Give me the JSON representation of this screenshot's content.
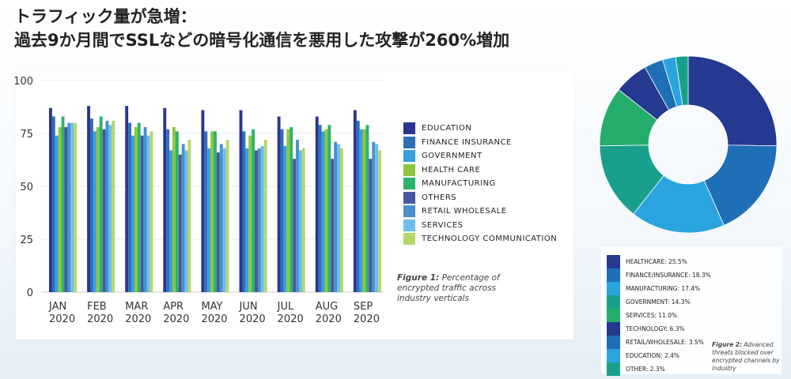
{
  "title": {
    "line1": "トラフィック量が急増：",
    "line2": "過去9か月間でSSLなどの暗号化通信を悪用した攻撃が260%増加"
  },
  "chart_data": [
    {
      "type": "bar",
      "title": "",
      "xlabel": "",
      "ylabel": "",
      "ylim": [
        0,
        100
      ],
      "yticks": [
        "0",
        "25",
        "50",
        "75",
        "100"
      ],
      "grid": true,
      "legend_position": "right",
      "categories": [
        "JAN 2020",
        "FEB 2020",
        "MAR 2020",
        "APR 2020",
        "MAY 2020",
        "JUN 2020",
        "JUL 2020",
        "AUG 2020",
        "SEP 2020"
      ],
      "category_lines": [
        [
          "JAN",
          "2020"
        ],
        [
          "FEB",
          "2020"
        ],
        [
          "MAR",
          "2020"
        ],
        [
          "APR",
          "2020"
        ],
        [
          "MAY",
          "2020"
        ],
        [
          "JUN",
          "2020"
        ],
        [
          "JUL",
          "2020"
        ],
        [
          "AUG",
          "2020"
        ],
        [
          "SEP",
          "2020"
        ]
      ],
      "series": [
        {
          "name": "EDUCATION",
          "color": "#2a3590",
          "values": [
            87,
            88,
            88,
            87,
            86,
            86,
            83,
            83,
            86
          ]
        },
        {
          "name": "FINANCE INSURANCE",
          "color": "#2f6fba",
          "values": [
            83,
            82,
            80,
            77,
            76,
            76,
            77,
            79,
            81
          ]
        },
        {
          "name": "GOVERNMENT",
          "color": "#36a0e0",
          "values": [
            74,
            76,
            74,
            67,
            68,
            68,
            69,
            76,
            77
          ]
        },
        {
          "name": "HEALTH CARE",
          "color": "#8cc63f",
          "values": [
            78,
            78,
            78,
            78,
            76,
            74,
            77,
            77,
            77
          ]
        },
        {
          "name": "MANUFACTURING",
          "color": "#2bb36b",
          "values": [
            83,
            83,
            80,
            76,
            76,
            77,
            78,
            79,
            79
          ]
        },
        {
          "name": "OTHERS",
          "color": "#4a56a0",
          "values": [
            78,
            77,
            74,
            65,
            66,
            67,
            63,
            63,
            63
          ]
        },
        {
          "name": "RETAIL WHOLESALE",
          "color": "#4a8fd0",
          "values": [
            80,
            81,
            78,
            70,
            70,
            68,
            72,
            71,
            71
          ]
        },
        {
          "name": "SERVICES",
          "color": "#6cbfea",
          "values": [
            80,
            79,
            74,
            67,
            68,
            69,
            67,
            70,
            70
          ]
        },
        {
          "name": "TECHNOLOGY COMMUNICATION",
          "color": "#b5d86a",
          "values": [
            80,
            81,
            76,
            72,
            72,
            72,
            68,
            68,
            67
          ]
        }
      ],
      "caption_label": "Figure 1:",
      "caption_text": "Percentage of encrypted traffic across industry verticals"
    },
    {
      "type": "pie",
      "donut": true,
      "slices": [
        {
          "label": "HEALTHCARE: 25.5%",
          "value": 25.5,
          "color": "#24398f"
        },
        {
          "label": "FINANCE/INSURANCE: 18.3%",
          "value": 18.3,
          "color": "#1f6fb7"
        },
        {
          "label": "MANUFACTURING: 17.4%",
          "value": 17.4,
          "color": "#2aa4de"
        },
        {
          "label": "GOVERNMENT: 14.3%",
          "value": 14.3,
          "color": "#18a08c"
        },
        {
          "label": "SERVICES: 11.0%",
          "value": 11.0,
          "color": "#25ad6c"
        },
        {
          "label": "TECHNOLOGY: 6.3%",
          "value": 6.3,
          "color": "#24398f"
        },
        {
          "label": "RETAIL/WHOLESALE: 3.5%",
          "value": 3.5,
          "color": "#1f6fb7"
        },
        {
          "label": "EDUCATION: 2.4%",
          "value": 2.4,
          "color": "#2aa4de"
        },
        {
          "label": "OTHER: 2.3%",
          "value": 2.3,
          "color": "#18a08c"
        }
      ],
      "caption_label": "Figure 2:",
      "caption_text": "Advanced threats blocked over encrypted channels by industry"
    }
  ]
}
